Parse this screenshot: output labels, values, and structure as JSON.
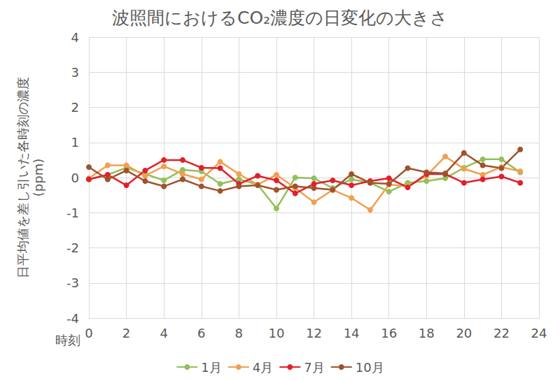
{
  "chart_data": {
    "type": "line",
    "title": "波照間におけるCO₂濃度の日変化の大きさ",
    "xlabel": "時刻",
    "ylabel": "日平均値を差し引いた各時刻の濃度\n(ppm)",
    "x": [
      0,
      1,
      2,
      3,
      4,
      5,
      6,
      7,
      8,
      9,
      10,
      11,
      12,
      13,
      14,
      15,
      16,
      17,
      18,
      19,
      20,
      21,
      22,
      23
    ],
    "series": [
      {
        "name": "1月",
        "color": "#92c05a",
        "values": [
          -0.05,
          0.08,
          0.28,
          0.1,
          -0.08,
          0.22,
          0.18,
          -0.18,
          -0.05,
          -0.2,
          -0.88,
          0.0,
          -0.02,
          -0.3,
          -0.05,
          -0.15,
          -0.4,
          -0.15,
          -0.1,
          -0.02,
          0.28,
          0.52,
          0.52,
          0.15
        ]
      },
      {
        "name": "4月",
        "color": "#f0a050",
        "values": [
          -0.02,
          0.35,
          0.35,
          0.05,
          0.32,
          0.1,
          -0.05,
          0.45,
          0.1,
          -0.2,
          0.08,
          -0.3,
          -0.7,
          -0.35,
          -0.58,
          -0.92,
          -0.2,
          -0.25,
          0.05,
          0.6,
          0.25,
          0.08,
          0.3,
          0.18
        ]
      },
      {
        "name": "7月",
        "color": "#e0202a",
        "values": [
          -0.05,
          0.08,
          -0.22,
          0.2,
          0.5,
          0.5,
          0.28,
          0.27,
          -0.18,
          0.05,
          -0.08,
          -0.45,
          -0.18,
          -0.08,
          -0.22,
          -0.1,
          -0.02,
          -0.28,
          0.1,
          0.1,
          -0.15,
          -0.05,
          0.03,
          -0.15
        ]
      },
      {
        "name": "10月",
        "color": "#a0522d",
        "values": [
          0.3,
          -0.05,
          0.2,
          -0.1,
          -0.25,
          -0.05,
          -0.25,
          -0.38,
          -0.25,
          -0.22,
          -0.35,
          -0.25,
          -0.3,
          -0.35,
          0.1,
          -0.15,
          -0.18,
          0.27,
          0.15,
          0.12,
          0.7,
          0.35,
          0.27,
          0.8
        ]
      }
    ],
    "xlim": [
      0,
      24
    ],
    "xticks": [
      0,
      2,
      4,
      6,
      8,
      10,
      12,
      14,
      16,
      18,
      20,
      22,
      24
    ],
    "ylim": [
      -4,
      4
    ],
    "yticks": [
      -4,
      -3,
      -2,
      -1,
      0,
      1,
      2,
      3,
      4
    ],
    "grid": true,
    "legend": "bottom",
    "marker": "circle",
    "line_style": "solid"
  }
}
